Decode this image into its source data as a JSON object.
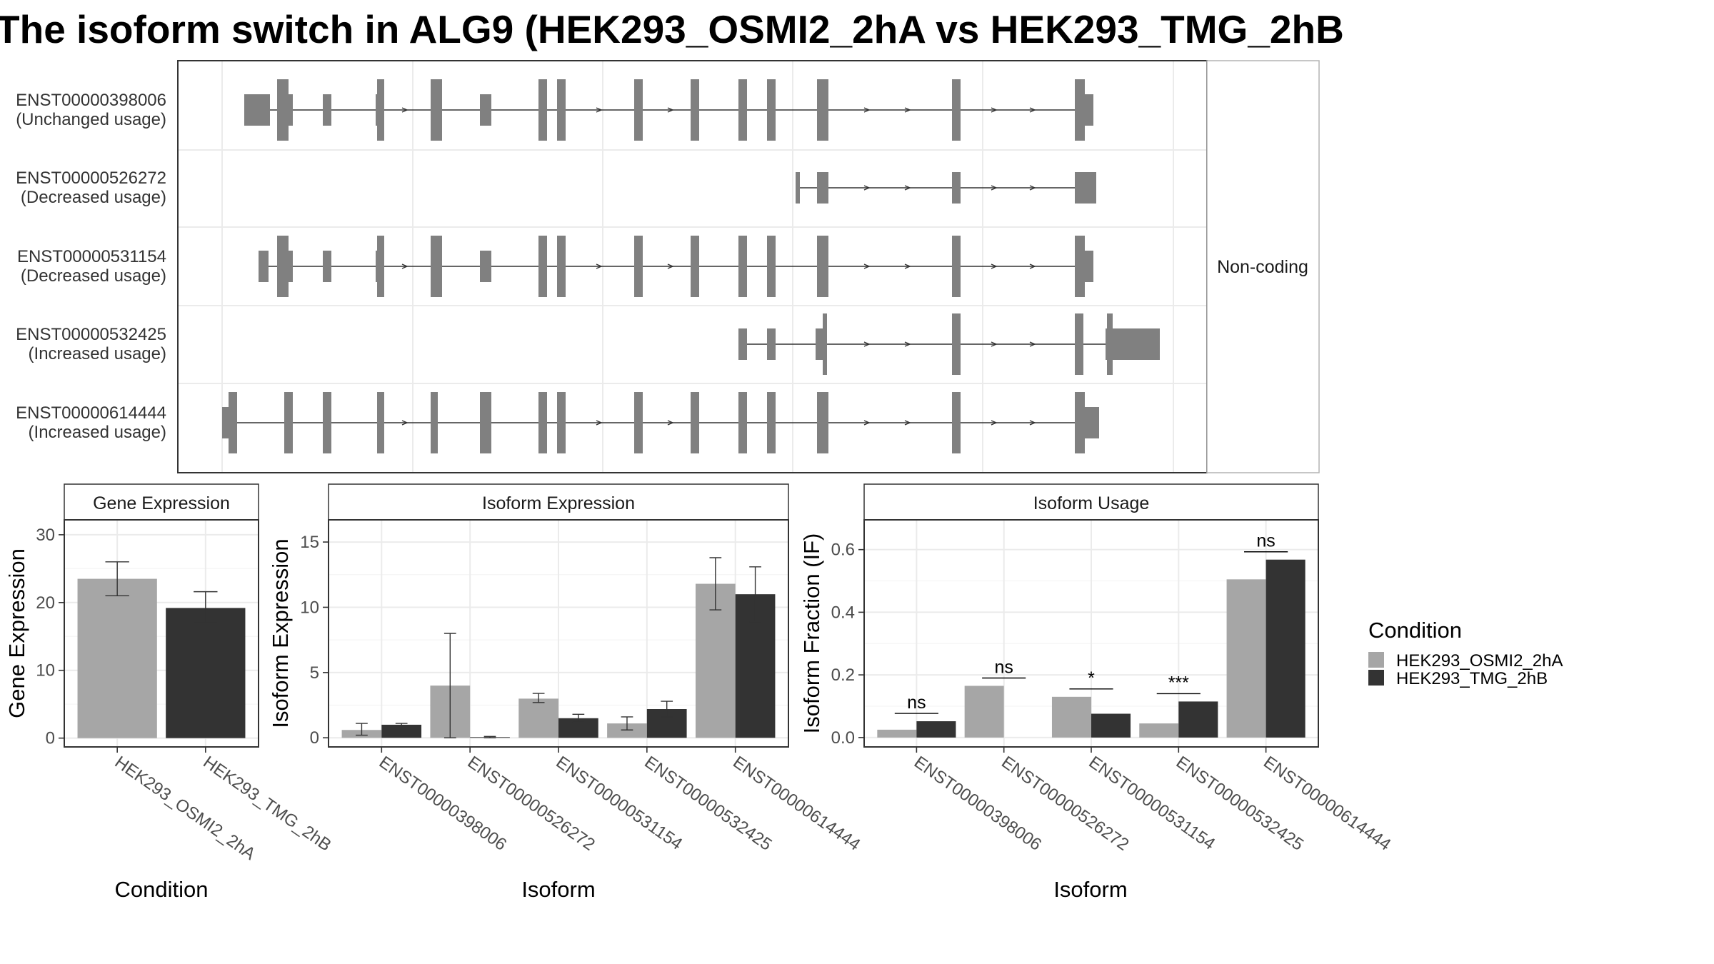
{
  "title": "The isoform switch in ALG9 (HEK293_OSMI2_2hA vs HEK293_TMG_2hB",
  "colors": {
    "exon": "#808080",
    "grid": "#ebebeb",
    "condition1": "#a6a6a6",
    "condition2": "#333333",
    "panel_border": "#333333",
    "strip_border": "#b3b3b3"
  },
  "structure_panel": {
    "side_label": "Non-coding",
    "isoforms": [
      {
        "id": "ENST00000398006",
        "usage": "(Unchanged usage)"
      },
      {
        "id": "ENST00000526272",
        "usage": "(Decreased usage)"
      },
      {
        "id": "ENST00000531154",
        "usage": "(Decreased usage)"
      },
      {
        "id": "ENST00000532425",
        "usage": "(Increased usage)"
      },
      {
        "id": "ENST00000614444",
        "usage": "(Increased usage)"
      }
    ]
  },
  "legend": {
    "title": "Condition",
    "items": [
      "HEK293_OSMI2_2hA",
      "HEK293_TMG_2hB"
    ]
  },
  "chart_data": [
    {
      "type": "bar",
      "title": "Gene Expression",
      "xlabel": "Condition",
      "ylabel": "Gene Expression",
      "categories": [
        "HEK293_OSMI2_2hA",
        "HEK293_TMG_2hB"
      ],
      "values": [
        23.5,
        19.2
      ],
      "errors": [
        [
          21.0,
          26.0
        ],
        [
          17.0,
          21.6
        ]
      ],
      "yticks": [
        0,
        10,
        20,
        30
      ],
      "ylim": [
        -1.3,
        32.2
      ]
    },
    {
      "type": "bar",
      "title": "Isoform Expression",
      "xlabel": "Isoform",
      "ylabel": "Isoform Expression",
      "categories": [
        "ENST00000398006",
        "ENST00000526272",
        "ENST00000531154",
        "ENST00000532425",
        "ENST00000614444"
      ],
      "series": [
        {
          "name": "HEK293_OSMI2_2hA",
          "values": [
            0.6,
            4.0,
            3.0,
            1.1,
            11.8
          ],
          "errors": [
            [
              0.2,
              1.1
            ],
            [
              0.0,
              8.0
            ],
            [
              2.7,
              3.4
            ],
            [
              0.6,
              1.6
            ],
            [
              9.8,
              13.8
            ]
          ]
        },
        {
          "name": "HEK293_TMG_2hB",
          "values": [
            1.0,
            0.05,
            1.5,
            2.2,
            11.0
          ],
          "errors": [
            [
              0.9,
              1.1
            ],
            [
              0.0,
              0.1
            ],
            [
              1.2,
              1.8
            ],
            [
              1.6,
              2.8
            ],
            [
              8.9,
              13.1
            ]
          ]
        }
      ],
      "yticks": [
        0,
        5,
        10,
        15
      ],
      "ylim": [
        -0.7,
        16.7
      ]
    },
    {
      "type": "bar",
      "title": "Isoform Usage",
      "xlabel": "Isoform",
      "ylabel": "Isoform Fraction (IF)",
      "categories": [
        "ENST00000398006",
        "ENST00000526272",
        "ENST00000531154",
        "ENST00000532425",
        "ENST00000614444"
      ],
      "series": [
        {
          "name": "HEK293_OSMI2_2hA",
          "values": [
            0.025,
            0.165,
            0.13,
            0.045,
            0.505
          ]
        },
        {
          "name": "HEK293_TMG_2hB",
          "values": [
            0.052,
            0.0,
            0.076,
            0.115,
            0.568
          ]
        }
      ],
      "significance": [
        "ns",
        "ns",
        "*",
        "***",
        "ns"
      ],
      "yticks": [
        0.0,
        0.2,
        0.4,
        0.6
      ],
      "ylim": [
        -0.03,
        0.695
      ]
    }
  ]
}
